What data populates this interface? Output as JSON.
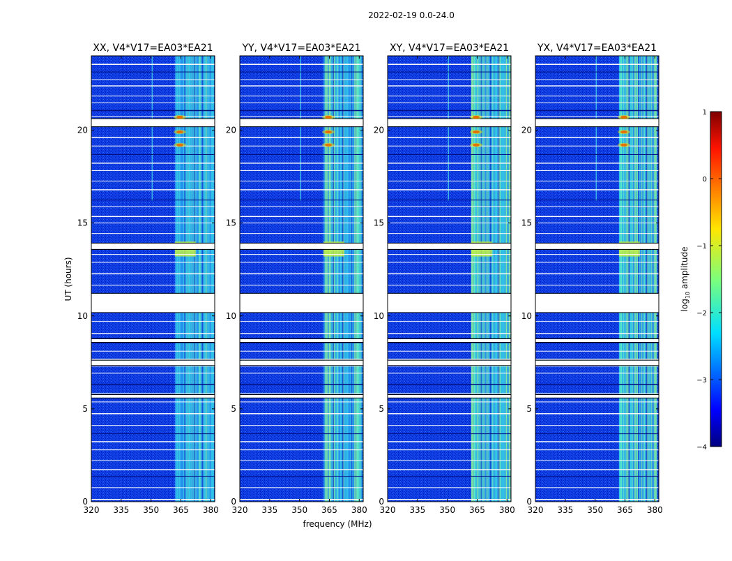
{
  "figure_title": "2022-02-19 0.0-24.0",
  "chart_data": {
    "type": "heatmap",
    "suptitle": "2022-02-19 0.0-24.0",
    "xlabel": "frequency (MHz)",
    "ylabel": "UT (hours)",
    "xlim": [
      320,
      382
    ],
    "ylim": [
      0,
      24
    ],
    "x_ticks": [
      "320",
      "335",
      "350",
      "365",
      "380"
    ],
    "y_ticks": [
      "0",
      "5",
      "10",
      "15",
      "20"
    ],
    "panels": [
      {
        "title": "XX, V4*V17=EA03*EA21"
      },
      {
        "title": "YY, V4*V17=EA03*EA21"
      },
      {
        "title": "XY, V4*V17=EA03*EA21"
      },
      {
        "title": "YX, V4*V17=EA03*EA21"
      }
    ],
    "colorbar": {
      "label": "log10 amplitude",
      "label_main": "log",
      "label_sub": "10",
      "label_rest": " amplitude",
      "range": [
        -4,
        1
      ],
      "ticks": [
        "1",
        "0",
        "−1",
        "−2",
        "−3",
        "−4"
      ],
      "colormap": "jet"
    },
    "rfi_band_mhz": [
      362,
      381
    ],
    "flagged_gaps_hours": [
      [
        5.6,
        5.75
      ],
      [
        7.35,
        7.6
      ],
      [
        8.6,
        8.75
      ],
      [
        10.2,
        11.2
      ],
      [
        13.6,
        13.9
      ],
      [
        20.2,
        20.6
      ]
    ],
    "colors": {
      "background_low": "#0a2fd8",
      "band_mid": "#2fd6c8",
      "hot": "#e00000"
    }
  }
}
